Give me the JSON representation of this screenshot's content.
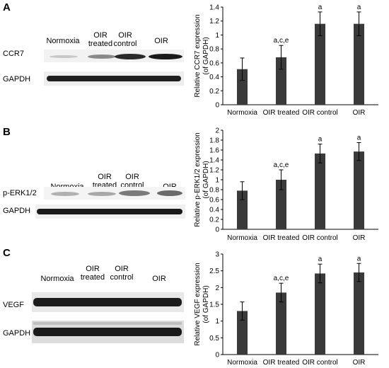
{
  "panels": [
    {
      "letter": "A",
      "blot": {
        "lanes": [
          "Normoxia",
          "OIR\ntreated",
          "OIR\ncontrol",
          "OIR"
        ],
        "rows": [
          "CCR7",
          "GAPDH"
        ]
      }
    },
    {
      "letter": "B",
      "blot": {
        "lanes": [
          "Normoxia",
          "OIR\ntreated",
          "OIR\ncontrol",
          "OIR"
        ],
        "rows": [
          "p-ERK1/2",
          "GAPDH"
        ]
      }
    },
    {
      "letter": "C",
      "blot": {
        "lanes": [
          "Normoxia",
          "OIR\ntreated",
          "OIR\ncontrol",
          "OIR"
        ],
        "rows": [
          "VEGF",
          "GAPDH"
        ]
      }
    }
  ],
  "chart_data": [
    {
      "type": "bar",
      "categories": [
        "Normoxia",
        "OIR treated",
        "OIR control",
        "OIR"
      ],
      "values": [
        0.51,
        0.68,
        1.16,
        1.16
      ],
      "errors": [
        0.16,
        0.17,
        0.17,
        0.17
      ],
      "annotations": [
        "",
        "a,c,e",
        "a",
        "a"
      ],
      "ylabel": "Relative CCR7 expression (of GAPDH)",
      "ylim": [
        0,
        1.4
      ],
      "yticks": [
        "0",
        "0.2",
        "0.4",
        "0.6",
        "0.8",
        "1",
        "1.2",
        "1.4"
      ],
      "bar_color": "#3a3a3a"
    },
    {
      "type": "bar",
      "categories": [
        "Normoxia",
        "OIR treated",
        "OIR control",
        "OIR"
      ],
      "values": [
        0.78,
        1.0,
        1.53,
        1.57
      ],
      "errors": [
        0.18,
        0.2,
        0.19,
        0.18
      ],
      "annotations": [
        "",
        "a,c,e",
        "a",
        "a"
      ],
      "ylabel": "Relative p-ERK1/2 expression (of GAPDH)",
      "ylim": [
        0,
        2
      ],
      "yticks": [
        "0",
        "0.2",
        "0.4",
        "0.6",
        "0.8",
        "1",
        "1.2",
        "1.4",
        "1.6",
        "1.8",
        "2"
      ],
      "bar_color": "#3a3a3a"
    },
    {
      "type": "bar",
      "categories": [
        "Normoxia",
        "OIR treated",
        "OIR control",
        "OIR"
      ],
      "values": [
        1.3,
        1.85,
        2.42,
        2.45
      ],
      "errors": [
        0.27,
        0.28,
        0.28,
        0.27
      ],
      "annotations": [
        "",
        "a,c,e",
        "a",
        "a"
      ],
      "ylabel": "Relative VEGF expression (of GAPDH)",
      "ylim": [
        0,
        3
      ],
      "yticks": [
        "0",
        "0.5",
        "1",
        "1.5",
        "2",
        "2.5",
        "3"
      ],
      "bar_color": "#3a3a3a"
    }
  ]
}
